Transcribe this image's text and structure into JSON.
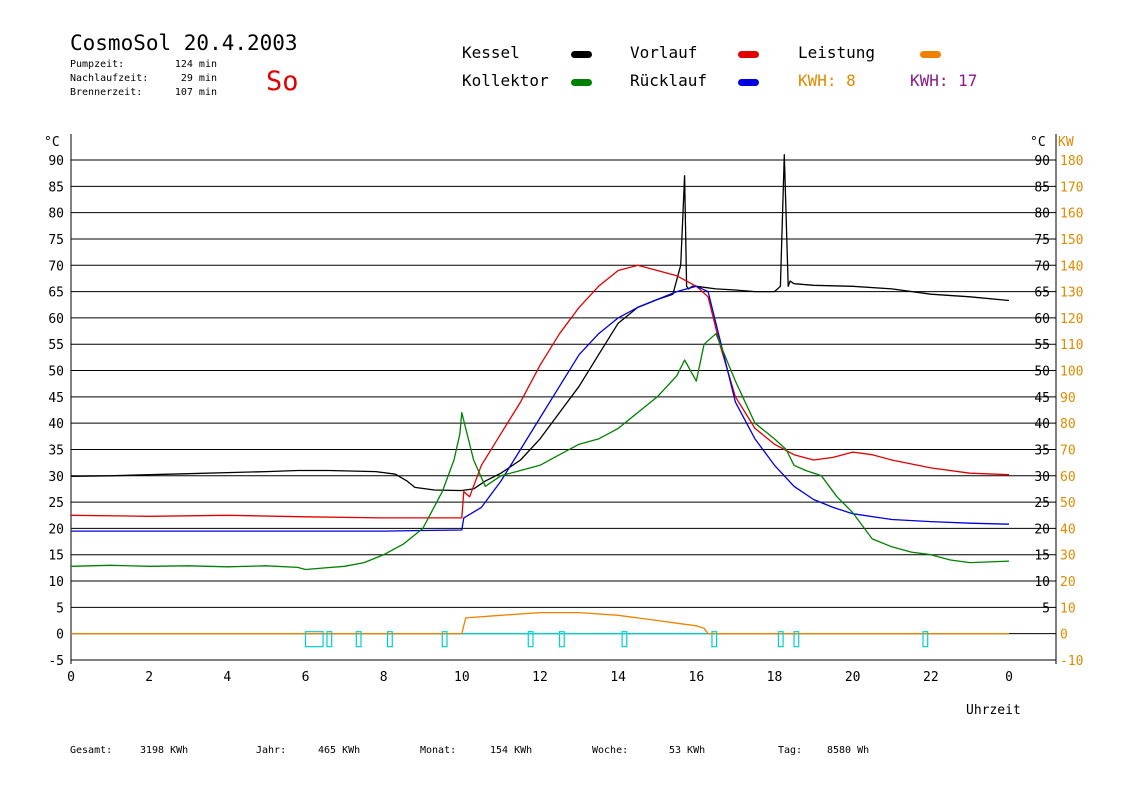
{
  "header": {
    "title": "CosmoSol 20.4.2003",
    "day": "So",
    "stats": [
      {
        "label": "Pumpzeit:",
        "value": "124 min"
      },
      {
        "label": "Nachlaufzeit:",
        "value": "29 min"
      },
      {
        "label": "Brennerzeit:",
        "value": "107 min"
      }
    ]
  },
  "legend": {
    "items": [
      {
        "label": "Kessel",
        "color": "#000000"
      },
      {
        "label": "Vorlauf",
        "color": "#e00000"
      },
      {
        "label": "Leistung",
        "color": "#f08000"
      },
      {
        "label": "Kollektor",
        "color": "#008000"
      },
      {
        "label": "Rücklauf",
        "color": "#0000e0"
      }
    ],
    "kwh": [
      {
        "label": "KWH: 8",
        "color": "#e08a00"
      },
      {
        "label": "KWH: 17",
        "color": "#8a1a8a"
      }
    ]
  },
  "footer": [
    {
      "label": "Gesamt:",
      "value": "3198 KWh"
    },
    {
      "label": "Jahr:",
      "value": "465 KWh"
    },
    {
      "label": "Monat:",
      "value": "154 KWh"
    },
    {
      "label": "Woche:",
      "value": "53 KWh"
    },
    {
      "label": "Tag:",
      "value": "8580 Wh"
    }
  ],
  "chart_data": {
    "type": "line",
    "xlabel": "Uhrzeit",
    "ylabel": "°C",
    "ylabel_right": "KW",
    "xlim": [
      0,
      24
    ],
    "ylim": [
      -5,
      90
    ],
    "ylim_right": [
      -10,
      180
    ],
    "x_ticks": [
      "0",
      "2",
      "4",
      "6",
      "8",
      "10",
      "12",
      "14",
      "16",
      "18",
      "20",
      "22",
      "0"
    ],
    "y_ticks": [
      90,
      85,
      80,
      75,
      70,
      65,
      60,
      55,
      50,
      45,
      40,
      35,
      30,
      25,
      20,
      15,
      10,
      5,
      0,
      -5
    ],
    "y_ticks_left": [
      "90",
      "85",
      "80",
      "75",
      "70",
      "65",
      "60",
      "55",
      "50",
      "45",
      "40",
      "35",
      "30",
      "25",
      "20",
      "15",
      "10",
      "5",
      "0",
      "-5"
    ],
    "y_ticks_right_c": [
      "90",
      "85",
      "80",
      "75",
      "70",
      "65",
      "60",
      "55",
      "50",
      "45",
      "40",
      "35",
      "30",
      "25",
      "20",
      "15",
      "10",
      "5"
    ],
    "y_ticks_right_kw": [
      "180",
      "170",
      "160",
      "150",
      "140",
      "130",
      "120",
      "110",
      "100",
      "90",
      "80",
      "70",
      "60",
      "50",
      "40",
      "30",
      "20",
      "10",
      "0",
      "-10"
    ],
    "grid": true,
    "series": [
      {
        "name": "Kessel",
        "color": "#000000",
        "x": [
          0,
          1,
          2,
          3,
          4,
          5,
          5.8,
          6.6,
          7.8,
          8.3,
          8.6,
          8.8,
          9.3,
          9.9,
          10.0,
          10.3,
          10.6,
          11.0,
          11.5,
          12.0,
          12.5,
          13.0,
          13.5,
          14.0,
          14.5,
          15.0,
          15.4,
          15.6,
          15.7,
          15.75,
          15.8,
          15.9,
          16.0,
          16.5,
          17.0,
          17.5,
          18.0,
          18.15,
          18.25,
          18.35,
          18.4,
          18.5,
          19.0,
          20.0,
          21.0,
          22.0,
          23.0,
          24.0
        ],
        "y": [
          29.9,
          30.0,
          30.2,
          30.4,
          30.6,
          30.8,
          31.0,
          31.0,
          30.8,
          30.3,
          29.0,
          27.8,
          27.3,
          27.2,
          27.2,
          27.5,
          29,
          30.5,
          33,
          37,
          42,
          47,
          53,
          59,
          62,
          63.5,
          64.5,
          70,
          87,
          66,
          65.5,
          66,
          66,
          65.5,
          65.3,
          65.0,
          65.0,
          66,
          91,
          66,
          67,
          66.5,
          66.2,
          66.0,
          65.5,
          64.5,
          64.0,
          63.3
        ]
      },
      {
        "name": "Vorlauf",
        "color": "#e00000",
        "x": [
          0,
          2,
          4,
          6,
          8,
          9,
          10.0,
          10.05,
          10.2,
          10.5,
          11,
          11.5,
          12,
          12.5,
          13,
          13.5,
          14,
          14.5,
          15,
          15.5,
          16,
          16.3,
          16.6,
          17,
          17.5,
          18,
          18.5,
          19,
          19.5,
          20,
          20.5,
          21,
          22,
          23,
          24
        ],
        "y": [
          22.5,
          22.3,
          22.5,
          22.2,
          22.0,
          22.0,
          22.0,
          27,
          26,
          32,
          38,
          44,
          51,
          57,
          62,
          66,
          69,
          70,
          69,
          68,
          66,
          64,
          55,
          45,
          39,
          36,
          34,
          33,
          33.5,
          34.5,
          34,
          33,
          31.5,
          30.5,
          30.2
        ]
      },
      {
        "name": "Rücklauf",
        "color": "#0000e0",
        "x": [
          0,
          2,
          4,
          6,
          8,
          9,
          10.0,
          10.05,
          10.5,
          11,
          11.5,
          12,
          12.5,
          13,
          13.5,
          14,
          14.5,
          15,
          15.5,
          16,
          16.3,
          16.6,
          17,
          17.5,
          18,
          18.5,
          19,
          19.5,
          20,
          21,
          22,
          23,
          24
        ],
        "y": [
          19.5,
          19.5,
          19.5,
          19.5,
          19.5,
          19.6,
          19.7,
          22,
          24,
          29,
          35,
          41,
          47,
          53,
          57,
          60,
          62,
          63.5,
          65,
          66,
          65,
          56,
          44,
          37,
          32,
          28,
          25.5,
          24,
          22.8,
          21.7,
          21.3,
          21.0,
          20.8
        ]
      },
      {
        "name": "Kollektor",
        "color": "#008000",
        "x": [
          0,
          1,
          2,
          3,
          4,
          5,
          5.8,
          6.0,
          6.5,
          7.0,
          7.5,
          8.0,
          8.5,
          9.0,
          9.5,
          9.8,
          9.95,
          10.0,
          10.3,
          10.6,
          11,
          11.5,
          12,
          12.5,
          13,
          13.5,
          14,
          14.5,
          15,
          15.5,
          15.7,
          16,
          16.2,
          16.5,
          17,
          17.5,
          18,
          18.3,
          18.5,
          18.8,
          19.2,
          19.6,
          20,
          20.5,
          21,
          21.5,
          22,
          22.5,
          23,
          24
        ],
        "y": [
          12.8,
          13.0,
          12.8,
          12.9,
          12.7,
          12.9,
          12.6,
          12.2,
          12.5,
          12.8,
          13.5,
          15,
          17,
          20,
          27,
          33,
          38,
          42,
          33,
          28,
          30,
          31,
          32,
          34,
          36,
          37,
          39,
          42,
          45,
          49,
          52,
          48,
          55,
          57,
          48,
          40,
          37,
          35,
          32,
          31,
          30,
          26,
          23,
          18,
          16.5,
          15.5,
          15.0,
          14.0,
          13.5,
          13.8
        ]
      },
      {
        "name": "Leistung",
        "color": "#f08000",
        "x": [
          0,
          10.0,
          10.1,
          11,
          12,
          13,
          14,
          14.5,
          15,
          15.5,
          16,
          16.2,
          16.3,
          24
        ],
        "y": [
          0,
          0,
          3,
          3.5,
          4,
          4,
          3.5,
          3,
          2.5,
          2,
          1.5,
          1,
          0,
          0
        ]
      }
    ],
    "markers": [
      {
        "x": 6.0,
        "w": 0.45
      },
      {
        "x": 6.55,
        "w": 0.12
      },
      {
        "x": 7.3,
        "w": 0.12
      },
      {
        "x": 8.1,
        "w": 0.12
      },
      {
        "x": 9.5,
        "w": 0.12
      },
      {
        "x": 11.7,
        "w": 0.12
      },
      {
        "x": 12.5,
        "w": 0.12
      },
      {
        "x": 14.1,
        "w": 0.12
      },
      {
        "x": 16.4,
        "w": 0.12
      },
      {
        "x": 18.1,
        "w": 0.12
      },
      {
        "x": 18.5,
        "w": 0.12
      },
      {
        "x": 21.8,
        "w": 0.12
      }
    ]
  }
}
